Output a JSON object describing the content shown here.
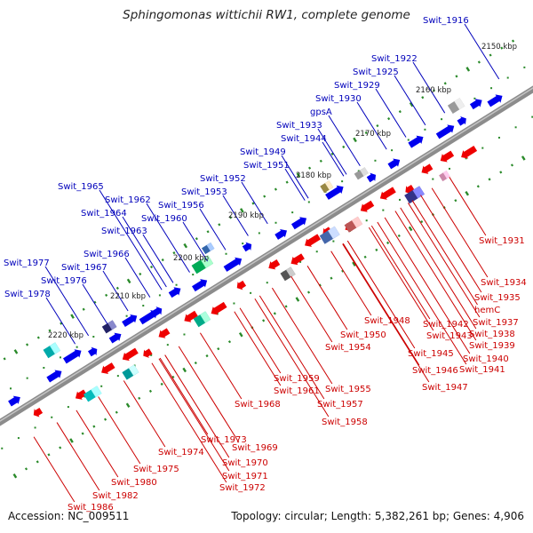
{
  "title": "Sphingomonas wittichii RW1, complete genome",
  "accession": "Accession: NC_009511",
  "stats": "Topology: circular; Length: 5,382,261 bp; Genes: 4,906",
  "colors": {
    "forward": "#0000ee",
    "reverse": "#ee0000",
    "backbone": "#8c8c8c",
    "tick": "#2a8a2a",
    "label_forward": "#0000bb",
    "label_reverse": "#cc0000"
  },
  "scale_labels": [
    "2150 kbp",
    "2160 kbp",
    "2170 kbp",
    "2180 kbp",
    "2190 kbp",
    "2200 kbp",
    "2210 kbp",
    "2220 kbp"
  ],
  "forward_genes": [
    "Swit_1916",
    "Swit_1922",
    "Swit_1925",
    "Swit_1929",
    "Swit_1930",
    "gpsA",
    "Swit_1933",
    "Swit_1944",
    "Swit_1949",
    "Swit_1951",
    "Swit_1952",
    "Swit_1953",
    "Swit_1956",
    "Swit_1960",
    "Swit_1962",
    "Swit_1963",
    "Swit_1964",
    "Swit_1965",
    "Swit_1966",
    "Swit_1967",
    "Swit_1976",
    "Swit_1977",
    "Swit_1978"
  ],
  "reverse_genes": [
    "Swit_1931",
    "Swit_1934",
    "Swit_1935",
    "hemC",
    "Swit_1937",
    "Swit_1938",
    "Swit_1939",
    "Swit_1940",
    "Swit_1941",
    "Swit_1942",
    "Swit_1943",
    "Swit_1945",
    "Swit_1946",
    "Swit_1947",
    "Swit_1948",
    "Swit_1950",
    "Swit_1954",
    "Swit_1955",
    "Swit_1957",
    "Swit_1958",
    "Swit_1959",
    "Swit_1961",
    "Swit_1968",
    "Swit_1969",
    "Swit_1970",
    "Swit_1971",
    "Swit_1972",
    "Swit_1973",
    "Swit_1974",
    "Swit_1975",
    "Swit_1980",
    "Swit_1982",
    "Swit_1986"
  ]
}
